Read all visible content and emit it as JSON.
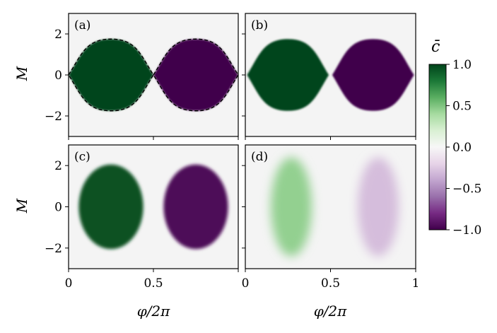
{
  "chart_data": {
    "type": "heatmap",
    "colormap": "PRGn",
    "x_range": [
      0,
      1
    ],
    "y_range": [
      -3,
      3
    ],
    "shared_xlabel": "φ/2π",
    "shared_ylabel": "M",
    "x_ticks": [
      "0",
      "0.5",
      "1"
    ],
    "x_ticks_left": [
      "0",
      "0.5"
    ],
    "y_ticks": [
      "2",
      "0",
      "−2"
    ],
    "colorbar": {
      "label": "c̄",
      "range": [
        -1,
        1
      ],
      "ticks": [
        "1.0",
        "0.5",
        "0.0",
        "−0.5",
        "−1.0"
      ]
    },
    "panels": [
      {
        "label": "(a)",
        "blobs": [
          {
            "x_center": 0.25,
            "y_center": 0,
            "half_width_x": 0.25,
            "half_height_y": 1.75,
            "value": 1.0,
            "shape": "lens"
          },
          {
            "x_center": 0.75,
            "y_center": 0,
            "half_width_x": 0.25,
            "half_height_y": 1.75,
            "value": -1.0,
            "shape": "lens"
          }
        ],
        "dashed_boundary": true
      },
      {
        "label": "(b)",
        "blobs": [
          {
            "x_center": 0.25,
            "y_center": 0,
            "half_width_x": 0.24,
            "half_height_y": 1.75,
            "value": 1.0,
            "shape": "lens"
          },
          {
            "x_center": 0.75,
            "y_center": 0,
            "half_width_x": 0.24,
            "half_height_y": 1.75,
            "value": -1.0,
            "shape": "lens"
          }
        ],
        "dashed_boundary": false
      },
      {
        "label": "(c)",
        "blobs": [
          {
            "x_center": 0.25,
            "y_center": 0,
            "half_width_x": 0.19,
            "half_height_y": 2.05,
            "value": 0.95,
            "shape": "ellipse"
          },
          {
            "x_center": 0.75,
            "y_center": 0,
            "half_width_x": 0.19,
            "half_height_y": 2.05,
            "value": -0.95,
            "shape": "ellipse"
          }
        ],
        "dashed_boundary": false
      },
      {
        "label": "(d)",
        "blobs": [
          {
            "x_center": 0.27,
            "y_center": 0,
            "half_width_x": 0.12,
            "half_height_y": 2.4,
            "value": 0.45,
            "shape": "ellipse"
          },
          {
            "x_center": 0.78,
            "y_center": 0,
            "half_width_x": 0.12,
            "half_height_y": 2.4,
            "value": -0.3,
            "shape": "ellipse"
          }
        ],
        "dashed_boundary": false
      }
    ]
  }
}
